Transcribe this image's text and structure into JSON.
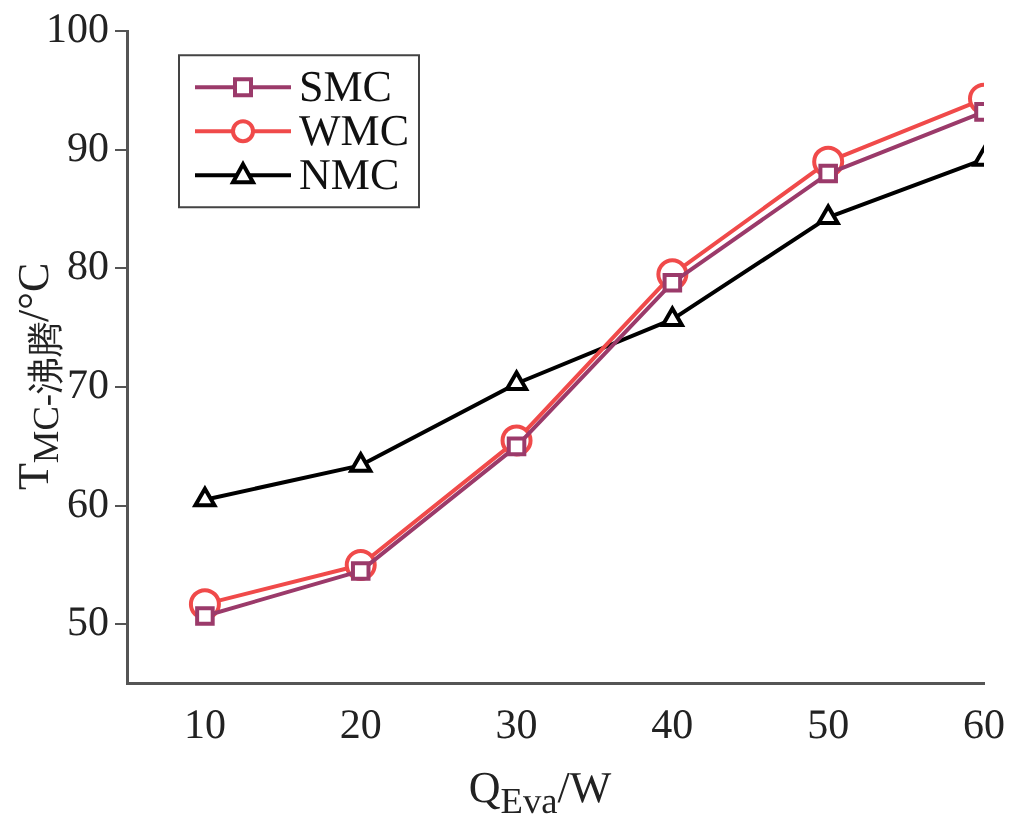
{
  "chart_data": {
    "type": "line",
    "xlabel": "Q$_{Eva}$/W",
    "ylabel": "T$_{MC-沸腾}$/°C",
    "x": [
      10,
      20,
      30,
      40,
      50,
      60
    ],
    "xlim": [
      5,
      60
    ],
    "xticks": [
      10,
      20,
      30,
      40,
      50,
      60
    ],
    "ylim": [
      45,
      100
    ],
    "yticks": [
      50,
      60,
      70,
      80,
      90,
      100
    ],
    "grid": false,
    "legend": "top left",
    "line_style": "solid",
    "series": [
      {
        "name": "SMC",
        "color": "#9b3a6a",
        "marker": "square",
        "values": [
          50.7,
          54.5,
          65,
          78.8,
          88,
          93.2
        ]
      },
      {
        "name": "WMC",
        "color": "#f04a4a",
        "marker": "circle",
        "values": [
          51.7,
          55,
          65.5,
          79.5,
          89,
          94.3
        ]
      },
      {
        "name": "NMC",
        "color": "#000000",
        "marker": "triangle",
        "values": [
          60.5,
          63.4,
          70.3,
          75.7,
          84.3,
          89.2
        ]
      }
    ]
  }
}
